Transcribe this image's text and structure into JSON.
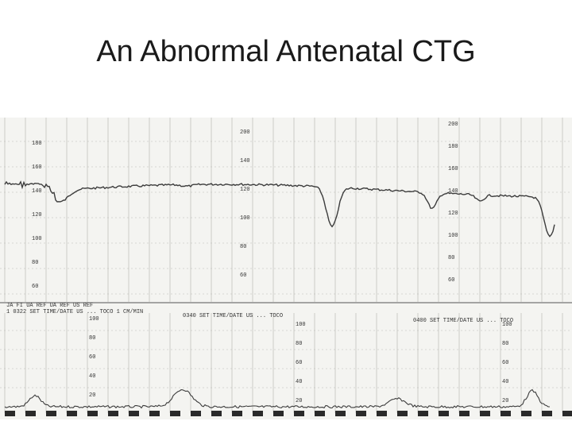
{
  "slide": {
    "title": "An Abnormal Antenatal CTG"
  },
  "ctg": {
    "fhr_scale_left": [
      "180",
      "160",
      "140",
      "120",
      "100",
      "80",
      "60"
    ],
    "fhr_scale_mid": [
      "200",
      "140",
      "120",
      "100",
      "80",
      "60"
    ],
    "fhr_scale_right": [
      "200",
      "180",
      "160",
      "140",
      "120",
      "100",
      "80",
      "60"
    ],
    "toco_scale": [
      "100",
      "80",
      "60",
      "40",
      "20"
    ],
    "header_left_line1": "JA   FI   UA REF     UA REF       US REF",
    "header_left_line2": "1 0322 SET TIME/DATE US ... TOCO 1 CM/MIN",
    "header_mid": "0340 SET TIME/DATE US ... TOCO",
    "header_right": "0400 SET TIME/DATE US ... TOCO",
    "colors": {
      "paper": "#f4f4f1",
      "grid": "#b9b9b4",
      "trace": "#3c3c3c",
      "ink": "#2a2a2a"
    }
  }
}
